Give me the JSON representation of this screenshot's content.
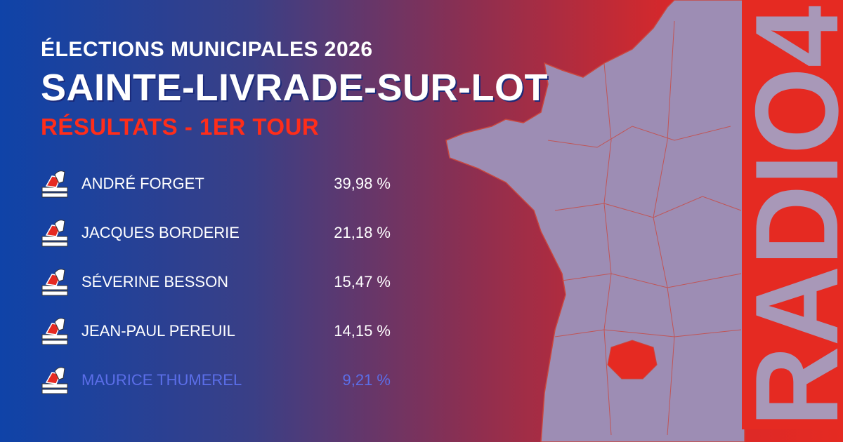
{
  "header": {
    "kicker": "ÉLECTIONS MUNICIPALES 2026",
    "title": "SAINTE-LIVRADE-SUR-LOT",
    "subtitle": "RÉSULTATS - 1ER TOUR"
  },
  "results": [
    {
      "name": "ANDRÉ FORGET",
      "percent": "39,98 %"
    },
    {
      "name": "JACQUES BORDERIE",
      "percent": "21,18 %"
    },
    {
      "name": "SÉVERINE BESSON",
      "percent": "15,47 %"
    },
    {
      "name": "JEAN-PAUL PEREUIL",
      "percent": "14,15 %"
    },
    {
      "name": "MAURICE THUMEREL",
      "percent": "9,21 %"
    }
  ],
  "logo": "RADIO4"
}
